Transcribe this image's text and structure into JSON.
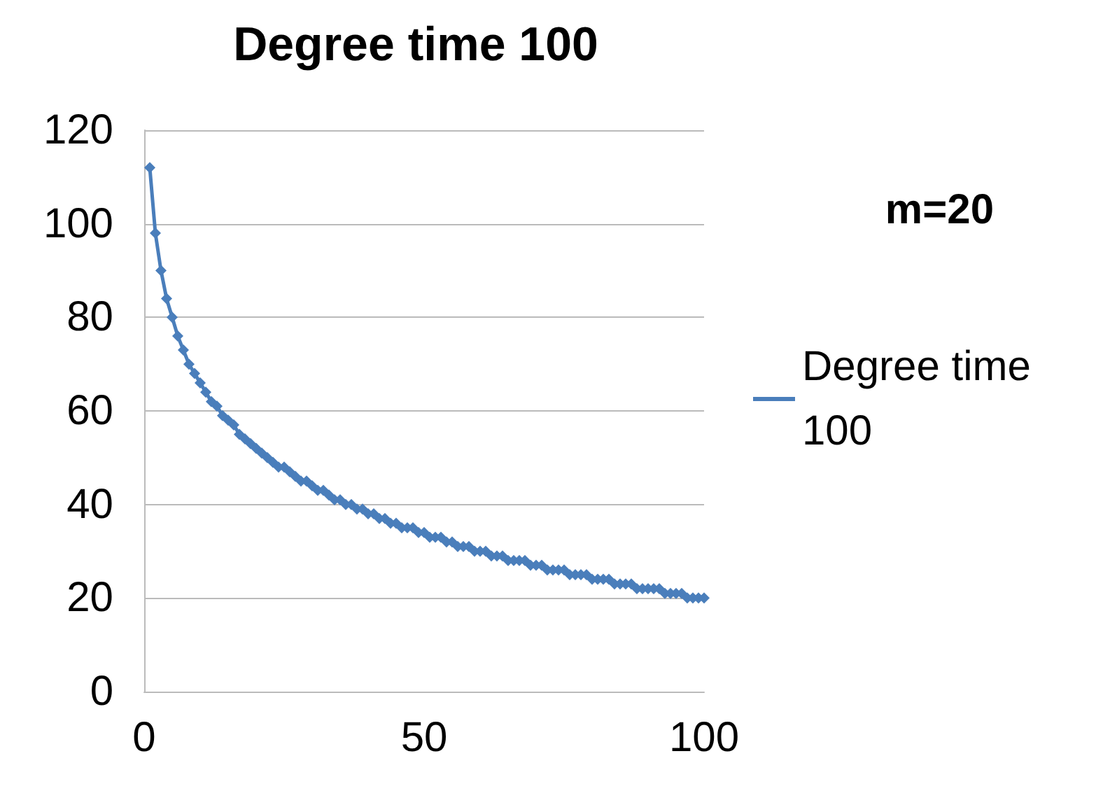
{
  "chart_data": {
    "type": "line",
    "title": "Degree time 100",
    "annotations": [
      "m=20"
    ],
    "x": [
      1,
      2,
      3,
      4,
      5,
      6,
      7,
      8,
      9,
      10,
      11,
      12,
      13,
      14,
      15,
      16,
      17,
      18,
      19,
      20,
      21,
      22,
      23,
      24,
      25,
      26,
      27,
      28,
      29,
      30,
      31,
      32,
      33,
      34,
      35,
      36,
      37,
      38,
      39,
      40,
      41,
      42,
      43,
      44,
      45,
      46,
      47,
      48,
      49,
      50,
      51,
      52,
      53,
      54,
      55,
      56,
      57,
      58,
      59,
      60,
      61,
      62,
      63,
      64,
      65,
      66,
      67,
      68,
      69,
      70,
      71,
      72,
      73,
      74,
      75,
      76,
      77,
      78,
      79,
      80,
      81,
      82,
      83,
      84,
      85,
      86,
      87,
      88,
      89,
      90,
      91,
      92,
      93,
      94,
      95,
      96,
      97,
      98,
      99,
      100
    ],
    "series": [
      {
        "name": "Degree time 100",
        "color": "#4a7ebb",
        "values": [
          112,
          98,
          90,
          84,
          80,
          76,
          73,
          70,
          68,
          66,
          64,
          62,
          61,
          59,
          58,
          57,
          55,
          54,
          53,
          52,
          51,
          50,
          49,
          48,
          48,
          47,
          46,
          45,
          45,
          44,
          43,
          43,
          42,
          41,
          41,
          40,
          40,
          39,
          39,
          38,
          38,
          37,
          37,
          36,
          36,
          35,
          35,
          35,
          34,
          34,
          33,
          33,
          33,
          32,
          32,
          31,
          31,
          31,
          30,
          30,
          30,
          29,
          29,
          29,
          28,
          28,
          28,
          28,
          27,
          27,
          27,
          26,
          26,
          26,
          26,
          25,
          25,
          25,
          25,
          24,
          24,
          24,
          24,
          23,
          23,
          23,
          23,
          22,
          22,
          22,
          22,
          22,
          21,
          21,
          21,
          21,
          20,
          20,
          20,
          20
        ]
      }
    ],
    "xlim": [
      0,
      100
    ],
    "xticks": [
      0,
      50,
      100
    ],
    "ylim": [
      0,
      120
    ],
    "yticks": [
      0,
      20,
      40,
      60,
      80,
      100,
      120
    ],
    "grid": "y",
    "legend": "right",
    "marker": "diamond",
    "line_style": "solid"
  }
}
